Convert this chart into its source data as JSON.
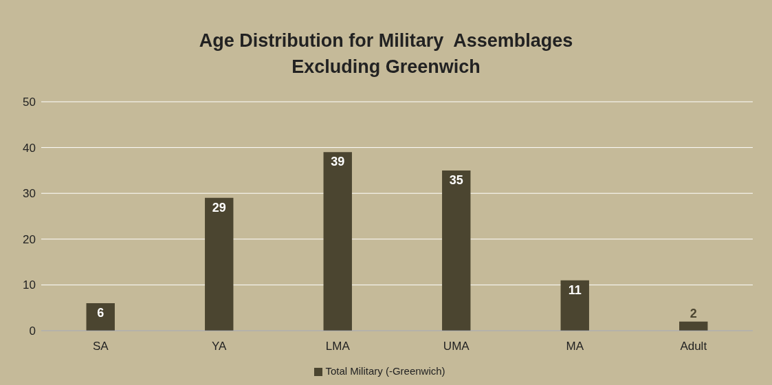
{
  "chart_data": {
    "type": "bar",
    "title": "Age Distribution for Military  Assemblages\nExcluding Greenwich",
    "categories": [
      "SA",
      "YA",
      "LMA",
      "UMA",
      "MA",
      "Adult"
    ],
    "series": [
      {
        "name": "Total Military (-Greenwich)",
        "color": "#4b4530",
        "values": [
          6,
          29,
          39,
          35,
          11,
          2
        ]
      }
    ],
    "ylim": [
      0,
      50
    ],
    "yticks": [
      0,
      10,
      20,
      30,
      40,
      50
    ],
    "grid": "y",
    "legend": "bottom",
    "data_labels": true
  }
}
